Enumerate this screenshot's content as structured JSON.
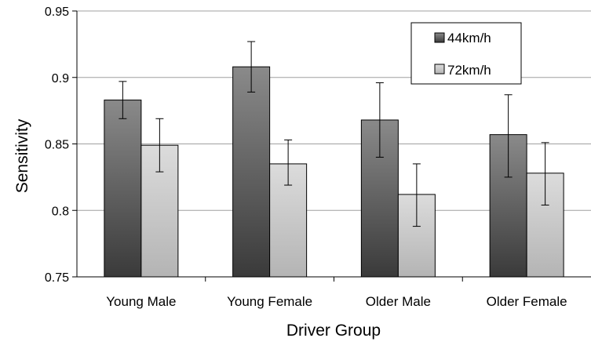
{
  "chart_data": {
    "type": "bar",
    "title": "",
    "xlabel": "Driver Group",
    "ylabel": "Sensitivity",
    "ylim": [
      0.75,
      0.95
    ],
    "yticks": [
      "0.75",
      "0.8",
      "0.85",
      "0.9",
      "0.95"
    ],
    "ytick_values": [
      0.75,
      0.8,
      0.85,
      0.9,
      0.95
    ],
    "grid": true,
    "legend_position": "top-right",
    "categories": [
      "Young Male",
      "Young Female",
      "Older Male",
      "Older Female"
    ],
    "series": [
      {
        "name": "44km/h",
        "color": "#6e6e6e",
        "values": [
          0.883,
          0.908,
          0.868,
          0.857
        ],
        "error_low": [
          0.869,
          0.889,
          0.84,
          0.825
        ],
        "error_high": [
          0.897,
          0.927,
          0.896,
          0.887
        ]
      },
      {
        "name": "72km/h",
        "color": "#c4c4c4",
        "values": [
          0.849,
          0.835,
          0.812,
          0.828
        ],
        "error_low": [
          0.829,
          0.819,
          0.788,
          0.804
        ],
        "error_high": [
          0.869,
          0.853,
          0.835,
          0.851
        ]
      }
    ]
  }
}
